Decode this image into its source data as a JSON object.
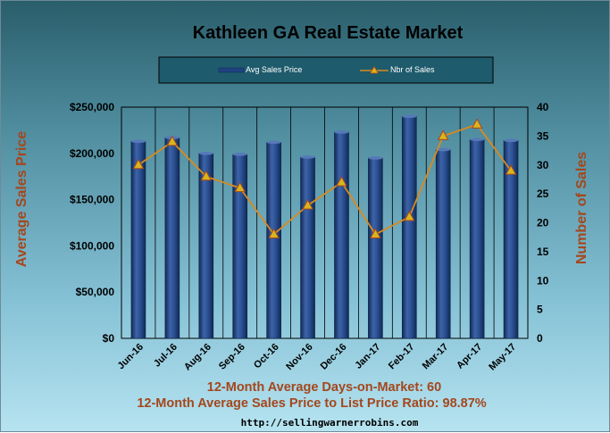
{
  "chart_data": {
    "type": "bar",
    "title": "Kathleen GA Real Estate Market",
    "categories": [
      "Jun-16",
      "Jul-16",
      "Aug-16",
      "Sep-16",
      "Oct-16",
      "Nov-16",
      "Dec-16",
      "Jan-17",
      "Feb-17",
      "Mar-17",
      "Apr-17",
      "May-17"
    ],
    "series": [
      {
        "name": "Avg Sales Price",
        "type": "bar",
        "axis": "left",
        "color": "#1f4280",
        "values": [
          213000,
          217000,
          200000,
          199000,
          212000,
          196000,
          223000,
          195000,
          240000,
          204000,
          215000,
          214000
        ]
      },
      {
        "name": "Nbr of Sales",
        "type": "line",
        "axis": "right",
        "color": "#d98a1e",
        "values": [
          30,
          34,
          28,
          26,
          18,
          23,
          27,
          18,
          21,
          35,
          37,
          29
        ]
      }
    ],
    "ylabel": "Average Sales Price",
    "y2label": "Number of Sales",
    "ylim": [
      0,
      250000
    ],
    "y2lim": [
      0,
      40
    ],
    "yticks": [
      "$0",
      "$50,000",
      "$100,000",
      "$150,000",
      "$200,000",
      "$250,000"
    ],
    "y2ticks": [
      "0",
      "5",
      "10",
      "15",
      "20",
      "25",
      "30",
      "35",
      "40"
    ],
    "legend_position": "top"
  },
  "footer": {
    "line1": "12-Month Average Days-on-Market: 60",
    "line2": "12-Month Average Sales Price to List Price Ratio: 98.87%",
    "url": "http://sellingwarnerrobins.com"
  }
}
